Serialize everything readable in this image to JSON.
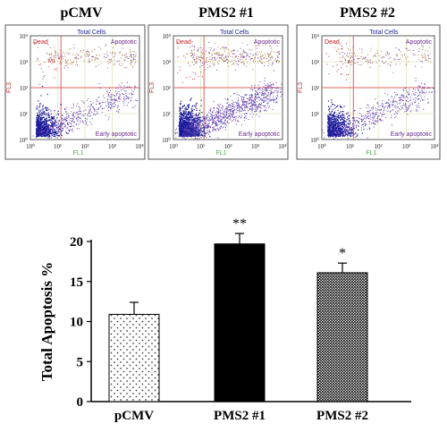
{
  "flow_panels": [
    {
      "title": "pCMV",
      "quadrant_labels": {
        "top_left": "Dead",
        "top_center": "Total Cells",
        "top_right": "Apoptotic",
        "bottom_right": "Early apoptotic"
      },
      "x_axis_label": "FL1",
      "y_axis_label": "FL3",
      "x_ticks": [
        "10⁰",
        "10¹",
        "10²",
        "10³",
        "10⁴"
      ],
      "y_ticks": [
        "10⁰",
        "10¹",
        "10²",
        "10³",
        "10⁴"
      ],
      "gate_label": "M1"
    },
    {
      "title": "PMS2 #1",
      "quadrant_labels": {
        "top_left": "Dead",
        "top_center": "Total Cells",
        "top_right": "Apoptotic",
        "bottom_right": "Early apoptotic"
      },
      "x_axis_label": "FL1",
      "y_axis_label": "FL3",
      "x_ticks": [
        "10⁰",
        "10¹",
        "10²",
        "10³",
        "10⁴"
      ],
      "y_ticks": [
        "10⁰",
        "10¹",
        "10²",
        "10³",
        "10⁴"
      ]
    },
    {
      "title": "PMS2 #2",
      "quadrant_labels": {
        "top_left": "Dead",
        "top_center": "Total Cells",
        "top_right": "Apoptotic",
        "bottom_right": "Early apoptotic"
      },
      "x_axis_label": "FL1",
      "y_axis_label": "FL3",
      "x_ticks": [
        "10⁰",
        "10¹",
        "10²",
        "10³",
        "10⁴"
      ],
      "y_ticks": [
        "10⁰",
        "10¹",
        "10²",
        "10³",
        "10⁴"
      ]
    }
  ],
  "colors": {
    "gate_line": "#e06060",
    "grid_line": "#d8d8a0",
    "dead_label": "#cc2020",
    "total_cells_label": "#2020a0",
    "quadrant_label": "#6a2a8a",
    "axis_label": "#4aa84a",
    "dot_dense": "#1a1a9a",
    "dot_mid": "#7a3aaa",
    "dot_apoptotic": "#b08040"
  },
  "chart_data": {
    "type": "bar",
    "categories": [
      "pCMV",
      "PMS2 #1",
      "PMS2 #2"
    ],
    "values": [
      10.9,
      19.7,
      16.1
    ],
    "errors": [
      1.5,
      1.3,
      1.2
    ],
    "significance": [
      "",
      "**",
      "*"
    ],
    "fills": [
      "dotted-sparse",
      "solid-black",
      "dotted-dense"
    ],
    "ylabel": "Total Apoptosis %",
    "xlabel": "",
    "ylim": [
      0,
      20
    ],
    "yticks": [
      0,
      5,
      10,
      15,
      20
    ],
    "grid": false
  }
}
